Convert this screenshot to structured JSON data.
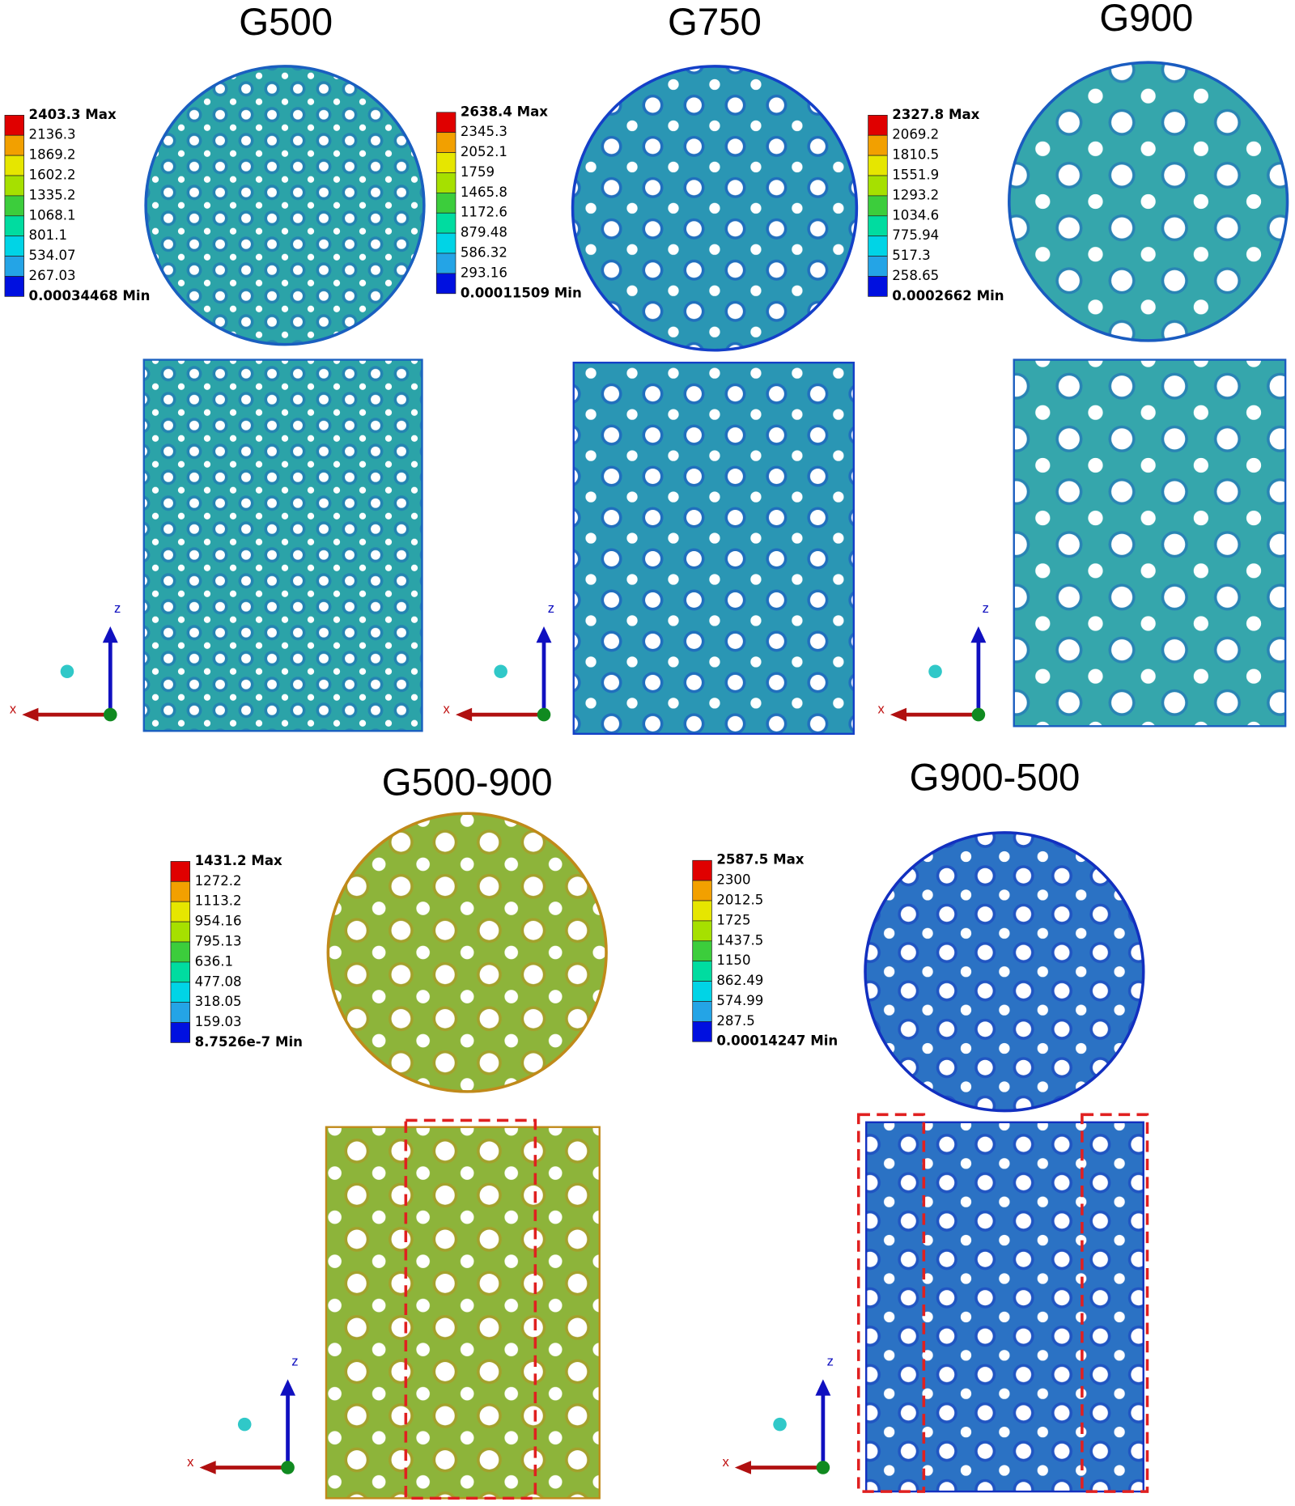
{
  "panels": [
    {
      "title": "G500",
      "legend": [
        "2403.3 Max",
        "2136.3",
        "1869.2",
        "1602.2",
        "1335.2",
        "1068.1",
        "801.1",
        "534.07",
        "267.03",
        "0.00034468 Min"
      ],
      "axis_z": "z",
      "axis_x": "x"
    },
    {
      "title": "G750",
      "legend": [
        "2638.4 Max",
        "2345.3",
        "2052.1",
        "1759",
        "1465.8",
        "1172.6",
        "879.48",
        "586.32",
        "293.16",
        "0.00011509 Min"
      ],
      "axis_z": "z",
      "axis_x": "x"
    },
    {
      "title": "G900",
      "legend": [
        "2327.8 Max",
        "2069.2",
        "1810.5",
        "1551.9",
        "1293.2",
        "1034.6",
        "775.94",
        "517.3",
        "258.65",
        "0.0002662 Min"
      ],
      "axis_z": "z",
      "axis_x": "x"
    },
    {
      "title": "G500-900",
      "legend": [
        "1431.2 Max",
        "1272.2",
        "1113.2",
        "954.16",
        "795.13",
        "636.1",
        "477.08",
        "318.05",
        "159.03",
        "8.7526e-7 Min"
      ],
      "axis_z": "z",
      "axis_x": "x"
    },
    {
      "title": "G900-500",
      "legend": [
        "2587.5 Max",
        "2300",
        "2012.5",
        "1725",
        "1437.5",
        "1150",
        "862.49",
        "574.99",
        "287.5",
        "0.00014247 Min"
      ],
      "axis_z": "z",
      "axis_x": "x"
    }
  ]
}
